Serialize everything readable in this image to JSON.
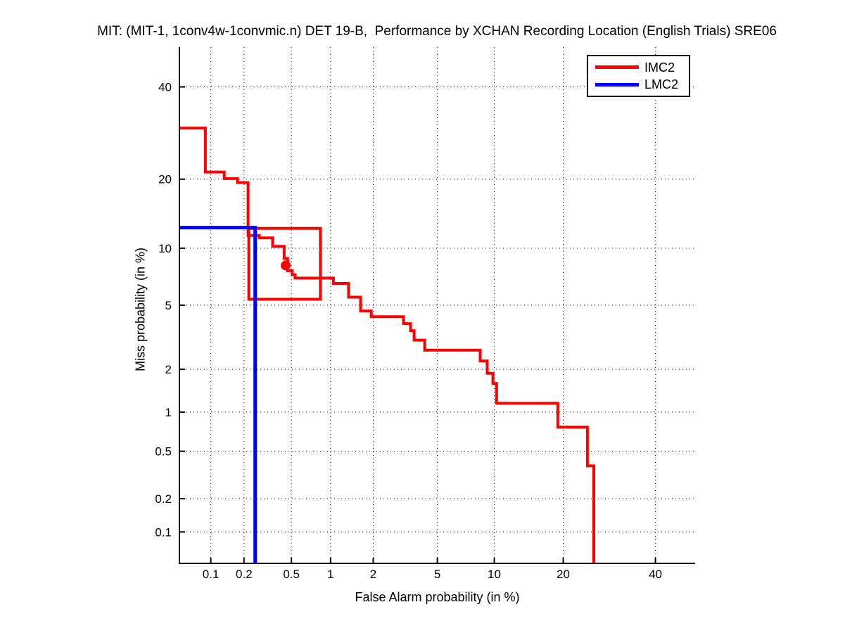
{
  "chart_data": {
    "type": "line",
    "subtype": "DET-curve-step-plot",
    "title": "MIT: (MIT-1, 1conv4w-1convmic.n) DET 19-B,  Performance by XCHAN Recording Location (English Trials) SRE06",
    "xlabel": "False Alarm probability (in %)",
    "ylabel": "Miss probability (in %)",
    "x_scale": "probit",
    "y_scale": "probit",
    "xlim": [
      0.05,
      50
    ],
    "ylim": [
      0.05,
      50
    ],
    "grid": true,
    "grid_style": "dotted-black",
    "legend_position": "top-right",
    "x_tick_labels": [
      "0.1",
      "0.2",
      "0.5",
      "1",
      "2",
      "5",
      "10",
      "20",
      "40"
    ],
    "y_tick_labels": [
      "40",
      "20",
      "10",
      "5",
      "2",
      "1",
      "0.5",
      "0.2",
      "0.1"
    ],
    "series": [
      {
        "name": "IMC2",
        "color": "#ff0000",
        "width": 4,
        "points_format": [
          "false_alarm_pct",
          "miss_pct"
        ],
        "points": [
          [
            0.05,
            30.3
          ],
          [
            0.089,
            30.3
          ],
          [
            0.089,
            21.3
          ],
          [
            0.133,
            21.3
          ],
          [
            0.133,
            20.1
          ],
          [
            0.175,
            20.1
          ],
          [
            0.175,
            19.4
          ],
          [
            0.217,
            19.4
          ],
          [
            0.217,
            11.5
          ],
          [
            0.271,
            11.5
          ],
          [
            0.271,
            11.2
          ],
          [
            0.351,
            11.2
          ],
          [
            0.351,
            10.2
          ],
          [
            0.437,
            10.2
          ],
          [
            0.437,
            8.9
          ],
          [
            0.466,
            8.9
          ],
          [
            0.466,
            7.7
          ],
          [
            0.507,
            7.7
          ],
          [
            0.507,
            7.35
          ],
          [
            0.535,
            7.35
          ],
          [
            0.535,
            7.05
          ],
          [
            1.05,
            7.05
          ],
          [
            1.05,
            6.6
          ],
          [
            1.35,
            6.6
          ],
          [
            1.35,
            5.55
          ],
          [
            1.64,
            5.55
          ],
          [
            1.64,
            4.63
          ],
          [
            1.94,
            4.63
          ],
          [
            1.94,
            4.29
          ],
          [
            3.14,
            4.29
          ],
          [
            3.14,
            3.9
          ],
          [
            3.47,
            3.9
          ],
          [
            3.47,
            3.53
          ],
          [
            3.65,
            3.53
          ],
          [
            3.65,
            3.09
          ],
          [
            4.22,
            3.09
          ],
          [
            4.22,
            2.67
          ],
          [
            8.51,
            2.67
          ],
          [
            8.51,
            2.27
          ],
          [
            9.23,
            2.27
          ],
          [
            9.23,
            1.88
          ],
          [
            9.85,
            1.88
          ],
          [
            9.85,
            1.6
          ],
          [
            10.26,
            1.6
          ],
          [
            10.26,
            1.16
          ],
          [
            19.05,
            1.16
          ],
          [
            19.05,
            0.77
          ],
          [
            24.6,
            0.77
          ],
          [
            24.6,
            0.38
          ],
          [
            25.9,
            0.38
          ],
          [
            25.9,
            0.05
          ]
        ]
      },
      {
        "name": "LMC2",
        "color": "#0000ff",
        "width": 5,
        "points_format": [
          "false_alarm_pct",
          "miss_pct"
        ],
        "points": [
          [
            0.05,
            12.5
          ],
          [
            0.25,
            12.5
          ],
          [
            0.25,
            0.05
          ]
        ]
      }
    ],
    "annotations": {
      "operating_point_marker": {
        "series": "IMC2",
        "false_alarm_pct": 0.45,
        "miss_pct": 8.2,
        "color": "#ff0000",
        "radius": 7
      },
      "error_box": {
        "false_alarm_range_pct": [
          0.22,
          0.84
        ],
        "miss_range_pct": [
          5.4,
          12.4
        ],
        "color": "#ff0000",
        "width": 4
      }
    }
  }
}
